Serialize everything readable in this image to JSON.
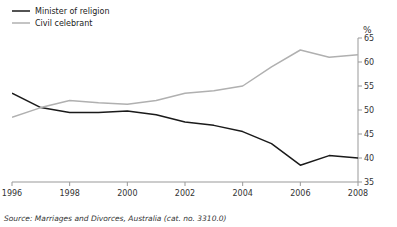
{
  "chart_data": {
    "type": "line",
    "x": [
      1996,
      1997,
      1998,
      1999,
      2000,
      2001,
      2002,
      2003,
      2004,
      2005,
      2006,
      2007,
      2008
    ],
    "series": [
      {
        "name": "Minister of religion",
        "color": "#1a1a1a",
        "values": [
          53.5,
          50.5,
          49.5,
          49.5,
          49.8,
          49.0,
          47.5,
          46.8,
          45.5,
          43.0,
          38.5,
          40.5,
          40.0
        ]
      },
      {
        "name": "Civil celebrant",
        "color": "#b0b0b0",
        "values": [
          48.5,
          50.5,
          52.0,
          51.5,
          51.2,
          52.0,
          53.5,
          54.0,
          55.0,
          59.0,
          62.5,
          61.0,
          61.5
        ]
      }
    ],
    "xlim": [
      1996,
      2008
    ],
    "xticks": [
      1996,
      1998,
      2000,
      2002,
      2004,
      2006,
      2008
    ],
    "ylim": [
      35,
      65
    ],
    "yticks": [
      35,
      40,
      45,
      50,
      55,
      60,
      65
    ],
    "y_label": "%",
    "annotations": [
      "Source: Marriages and Divorces, Australia (cat. no. 3310.0)"
    ],
    "legend": "top",
    "grid": false
  }
}
